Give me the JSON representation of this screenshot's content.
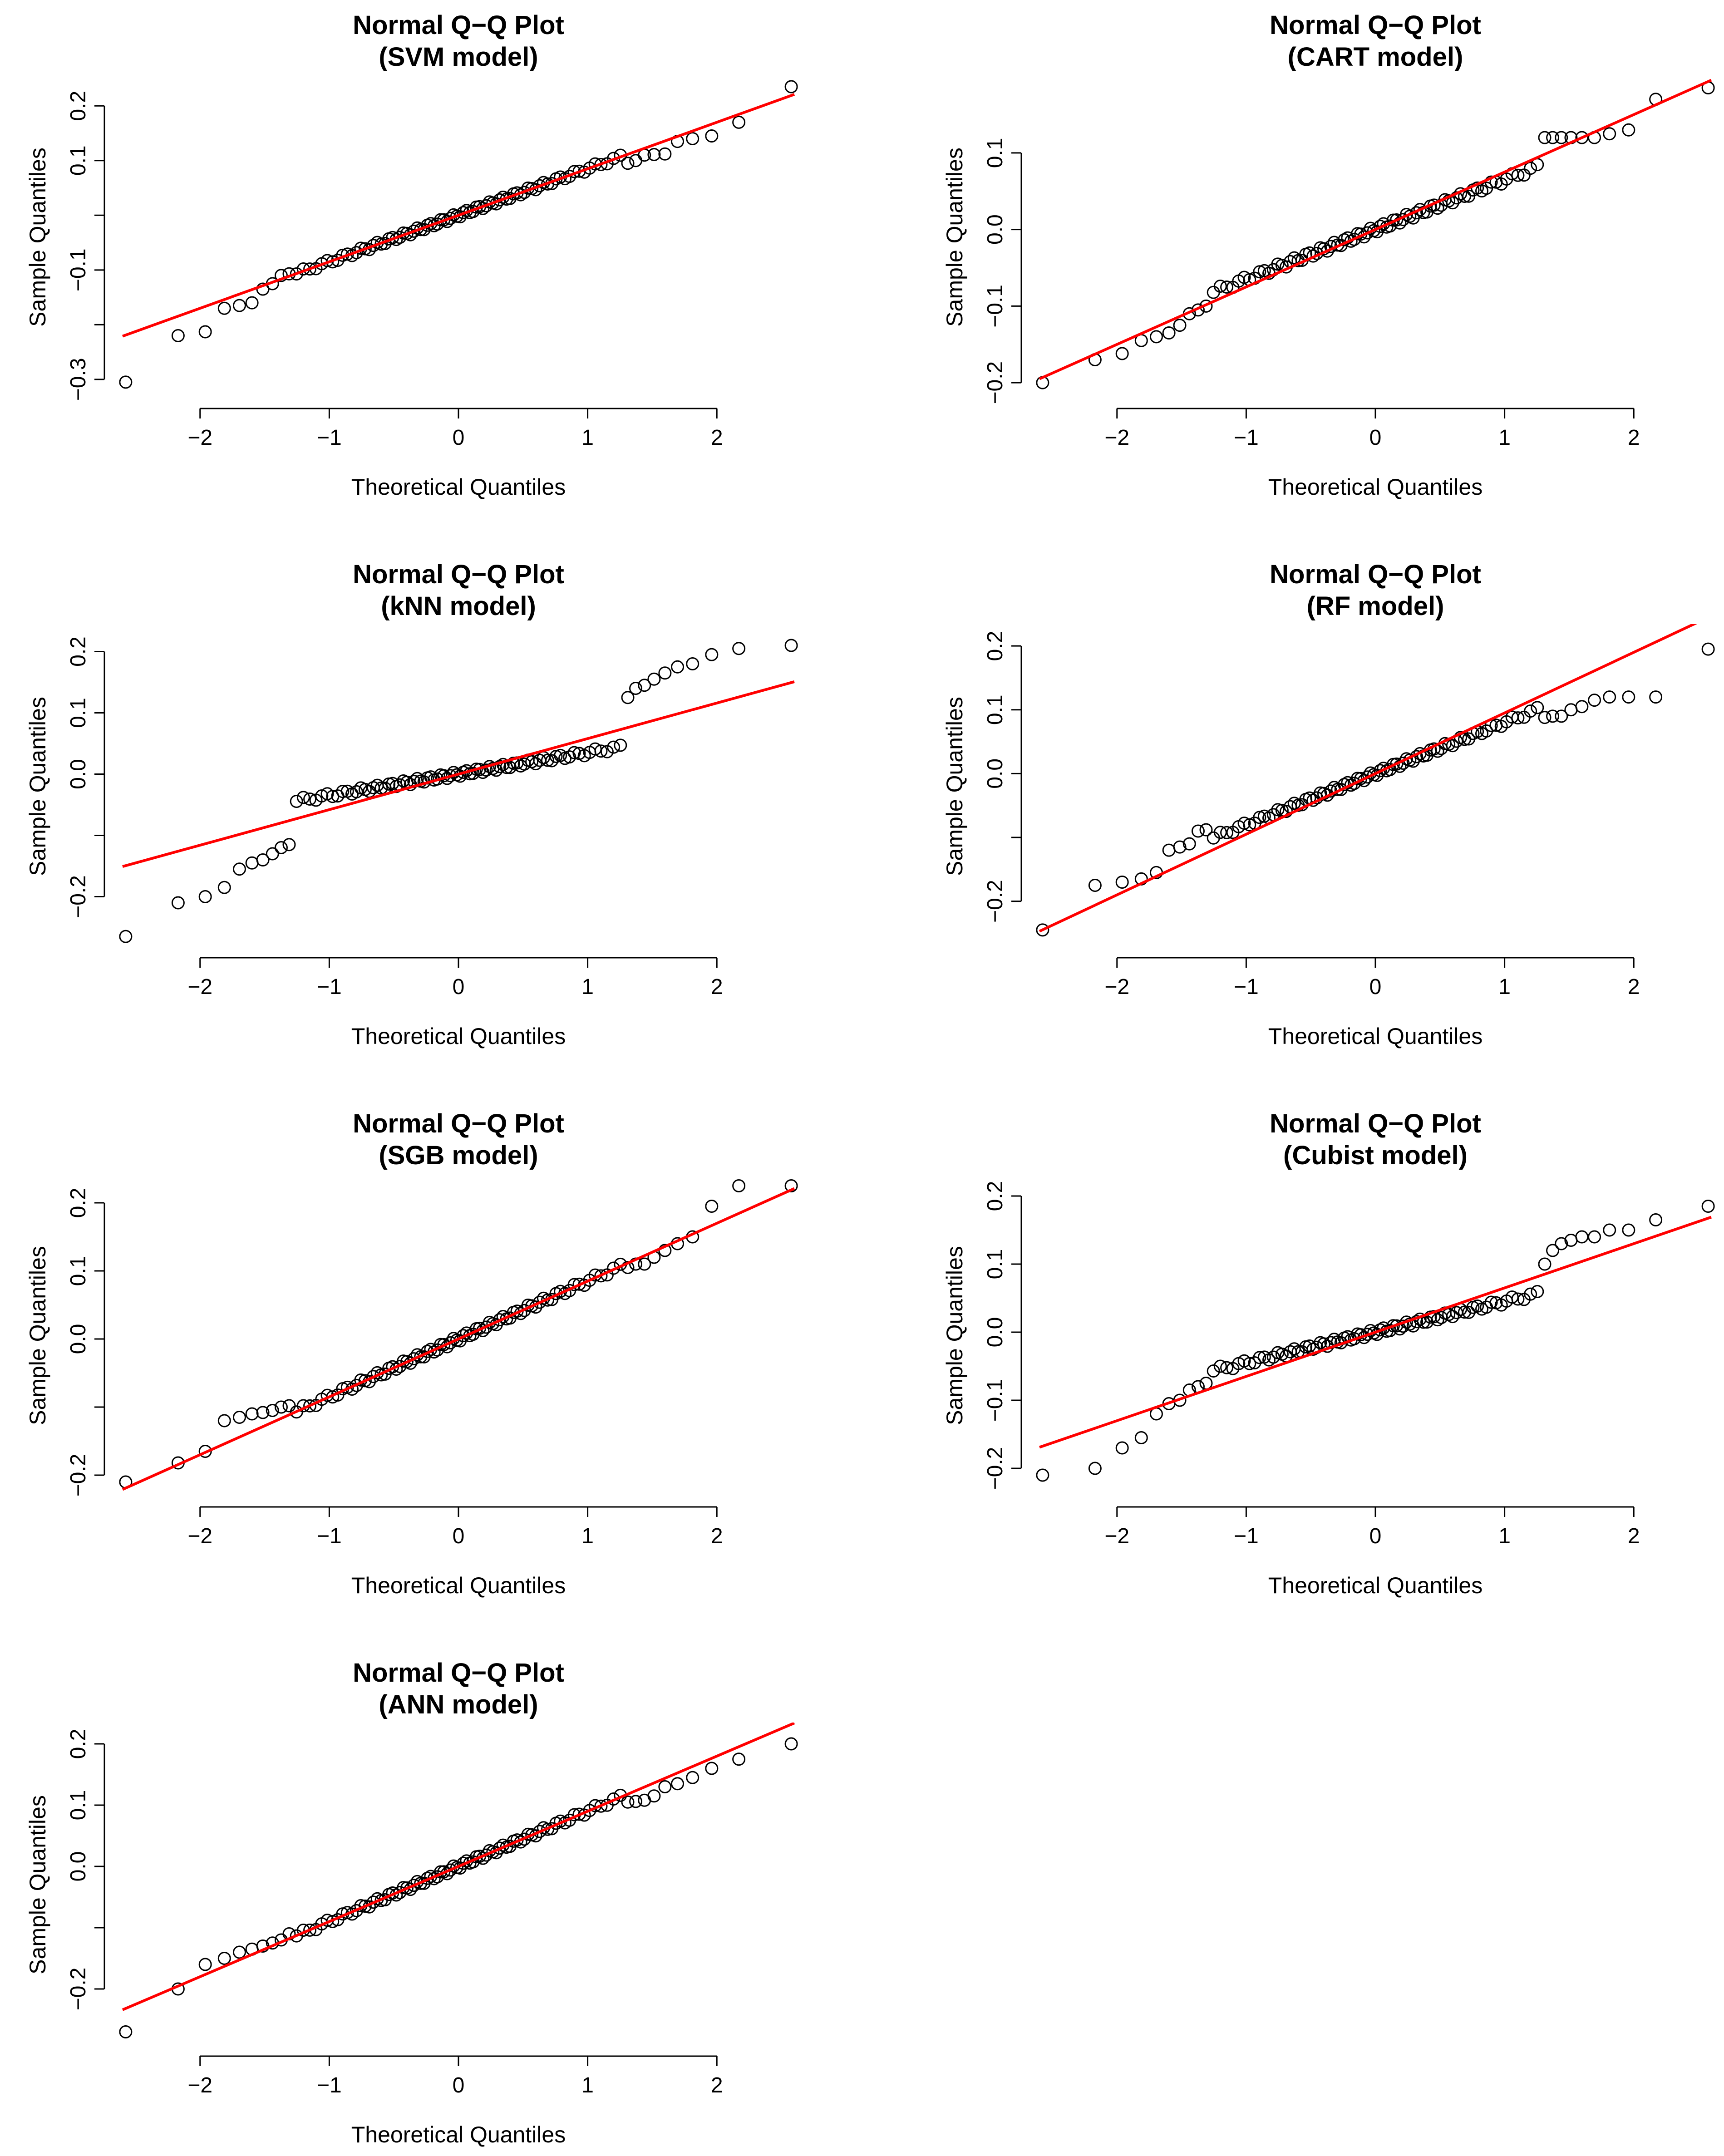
{
  "colors": {
    "reference_line": "#ff0000",
    "points": "#000000",
    "background": "#ffffff"
  },
  "chart_data": [
    {
      "type": "scatter",
      "title": "Normal Q−Q Plot",
      "subtitle": "(SVM model)",
      "xlabel": "Theoretical Quantiles",
      "ylabel": "Sample Quantiles",
      "xlim": [
        -2.6,
        2.6
      ],
      "ylim": [
        -0.32,
        0.24
      ],
      "xticks": [
        -2,
        -1,
        0,
        1,
        2
      ],
      "xtick_labels": [
        "−2",
        "−1",
        "0",
        "1",
        "2"
      ],
      "yticks": [
        -0.3,
        -0.2,
        -0.1,
        0.0,
        0.1,
        0.2
      ],
      "ytick_labels": [
        "−0.3",
        "",
        "−0.1",
        "",
        "0.1",
        "0.2"
      ],
      "grid": false,
      "reference_line": {
        "intercept": 0.0,
        "slope": 0.085
      },
      "n": 100,
      "n_low_shown": 10,
      "n_high_shown": 10,
      "low_tail": [
        -0.305,
        -0.22,
        -0.213,
        -0.17,
        -0.165,
        -0.16,
        -0.135,
        -0.125,
        -0.11,
        -0.107
      ],
      "high_tail": [
        0.095,
        0.1,
        0.11,
        0.111,
        0.112,
        0.135,
        0.14,
        0.145,
        0.17,
        0.235
      ],
      "core_slope": 0.085
    },
    {
      "type": "scatter",
      "title": "Normal Q−Q Plot",
      "subtitle": "(CART model)",
      "xlabel": "Theoretical Quantiles",
      "ylabel": "Sample Quantiles",
      "xlim": [
        -2.6,
        2.6
      ],
      "ylim": [
        -0.21,
        0.19
      ],
      "xticks": [
        -2,
        -1,
        0,
        1,
        2
      ],
      "xtick_labels": [
        "−2",
        "−1",
        "0",
        "1",
        "2"
      ],
      "yticks": [
        -0.2,
        -0.1,
        0.0,
        0.1
      ],
      "ytick_labels": [
        "−0.2",
        "−0.1",
        "0.0",
        "0.1"
      ],
      "grid": false,
      "reference_line": {
        "intercept": 0.0,
        "slope": 0.075
      },
      "n": 100,
      "n_low_shown": 10,
      "n_high_shown": 10,
      "low_tail": [
        -0.2,
        -0.17,
        -0.162,
        -0.145,
        -0.14,
        -0.135,
        -0.125,
        -0.11,
        -0.105,
        -0.1
      ],
      "high_tail": [
        0.12,
        0.12,
        0.12,
        0.12,
        0.12,
        0.12,
        0.125,
        0.13,
        0.17,
        0.185
      ],
      "core_slope": 0.065
    },
    {
      "type": "scatter",
      "title": "Normal Q−Q Plot",
      "subtitle": "(kNN model)",
      "xlabel": "Theoretical Quantiles",
      "ylabel": "Sample Quantiles",
      "xlim": [
        -2.6,
        2.6
      ],
      "ylim": [
        -0.27,
        0.23
      ],
      "xticks": [
        -2,
        -1,
        0,
        1,
        2
      ],
      "xtick_labels": [
        "−2",
        "−1",
        "0",
        "1",
        "2"
      ],
      "yticks": [
        -0.2,
        -0.1,
        0.0,
        0.1,
        0.2
      ],
      "ytick_labels": [
        "−0.2",
        "",
        "0.0",
        "0.1",
        "0.2"
      ],
      "grid": false,
      "reference_line": {
        "intercept": 0.0,
        "slope": 0.058
      },
      "n": 100,
      "n_low_shown": 10,
      "n_high_shown": 10,
      "low_tail": [
        -0.265,
        -0.21,
        -0.2,
        -0.185,
        -0.155,
        -0.145,
        -0.14,
        -0.13,
        -0.12,
        -0.115
      ],
      "high_tail": [
        0.125,
        0.14,
        0.145,
        0.155,
        0.165,
        0.175,
        0.18,
        0.195,
        0.205,
        0.21
      ],
      "core_slope": 0.035
    },
    {
      "type": "scatter",
      "title": "Normal Q−Q Plot",
      "subtitle": "(RF model)",
      "xlabel": "Theoretical Quantiles",
      "ylabel": "Sample Quantiles",
      "xlim": [
        -2.6,
        2.6
      ],
      "ylim": [
        -0.26,
        0.22
      ],
      "xticks": [
        -2,
        -1,
        0,
        1,
        2
      ],
      "xtick_labels": [
        "−2",
        "−1",
        "0",
        "1",
        "2"
      ],
      "yticks": [
        -0.2,
        -0.1,
        0.0,
        0.1,
        0.2
      ],
      "ytick_labels": [
        "−0.2",
        "",
        "0.0",
        "0.1",
        "0.2"
      ],
      "grid": false,
      "reference_line": {
        "intercept": 0.0,
        "slope": 0.095
      },
      "n": 100,
      "n_low_shown": 10,
      "n_high_shown": 10,
      "low_tail": [
        -0.245,
        -0.175,
        -0.17,
        -0.165,
        -0.155,
        -0.12,
        -0.115,
        -0.11,
        -0.09,
        -0.088
      ],
      "high_tail": [
        0.088,
        0.09,
        0.09,
        0.1,
        0.105,
        0.115,
        0.12,
        0.12,
        0.12,
        0.195
      ],
      "core_slope": 0.08
    },
    {
      "type": "scatter",
      "title": "Normal Q−Q Plot",
      "subtitle": "(SGB model)",
      "xlabel": "Theoretical Quantiles",
      "ylabel": "Sample Quantiles",
      "xlim": [
        -2.6,
        2.6
      ],
      "ylim": [
        -0.22,
        0.23
      ],
      "xticks": [
        -2,
        -1,
        0,
        1,
        2
      ],
      "xtick_labels": [
        "−2",
        "−1",
        "0",
        "1",
        "2"
      ],
      "yticks": [
        -0.2,
        -0.1,
        0.0,
        0.1,
        0.2
      ],
      "ytick_labels": [
        "−0.2",
        "",
        "0.0",
        "0.1",
        "0.2"
      ],
      "grid": false,
      "reference_line": {
        "intercept": 0.0,
        "slope": 0.085
      },
      "n": 100,
      "n_low_shown": 10,
      "n_high_shown": 10,
      "low_tail": [
        -0.21,
        -0.182,
        -0.165,
        -0.12,
        -0.115,
        -0.11,
        -0.108,
        -0.105,
        -0.1,
        -0.098
      ],
      "high_tail": [
        0.105,
        0.11,
        0.11,
        0.12,
        0.13,
        0.14,
        0.15,
        0.195,
        0.225,
        0.225
      ],
      "core_slope": 0.085
    },
    {
      "type": "scatter",
      "title": "Normal Q−Q Plot",
      "subtitle": "(Cubist model)",
      "xlabel": "Theoretical Quantiles",
      "ylabel": "Sample Quantiles",
      "xlim": [
        -2.6,
        2.6
      ],
      "ylim": [
        -0.23,
        0.22
      ],
      "xticks": [
        -2,
        -1,
        0,
        1,
        2
      ],
      "xtick_labels": [
        "−2",
        "−1",
        "0",
        "1",
        "2"
      ],
      "yticks": [
        -0.2,
        -0.1,
        0.0,
        0.1,
        0.2
      ],
      "ytick_labels": [
        "−0.2",
        "−0.1",
        "0.0",
        "0.1",
        "0.2"
      ],
      "grid": false,
      "reference_line": {
        "intercept": 0.0,
        "slope": 0.065
      },
      "n": 100,
      "n_low_shown": 10,
      "n_high_shown": 10,
      "low_tail": [
        -0.21,
        -0.2,
        -0.17,
        -0.155,
        -0.12,
        -0.105,
        -0.1,
        -0.085,
        -0.08,
        -0.075
      ],
      "high_tail": [
        0.1,
        0.12,
        0.13,
        0.135,
        0.14,
        0.14,
        0.15,
        0.15,
        0.165,
        0.185
      ],
      "core_slope": 0.045
    },
    {
      "type": "scatter",
      "title": "Normal Q−Q Plot",
      "subtitle": "(ANN model)",
      "xlabel": "Theoretical Quantiles",
      "ylabel": "Sample Quantiles",
      "xlim": [
        -2.6,
        2.6
      ],
      "ylim": [
        -0.28,
        0.22
      ],
      "xticks": [
        -2,
        -1,
        0,
        1,
        2
      ],
      "xtick_labels": [
        "−2",
        "−1",
        "0",
        "1",
        "2"
      ],
      "yticks": [
        -0.2,
        -0.1,
        0.0,
        0.1,
        0.2
      ],
      "ytick_labels": [
        "−0.2",
        "",
        "0.0",
        "0.1",
        "0.2"
      ],
      "grid": false,
      "reference_line": {
        "intercept": 0.0,
        "slope": 0.09
      },
      "n": 100,
      "n_low_shown": 10,
      "n_high_shown": 10,
      "low_tail": [
        -0.27,
        -0.2,
        -0.16,
        -0.15,
        -0.14,
        -0.135,
        -0.13,
        -0.125,
        -0.12,
        -0.11
      ],
      "high_tail": [
        0.105,
        0.106,
        0.108,
        0.115,
        0.13,
        0.135,
        0.145,
        0.16,
        0.175,
        0.2
      ],
      "core_slope": 0.09
    }
  ]
}
